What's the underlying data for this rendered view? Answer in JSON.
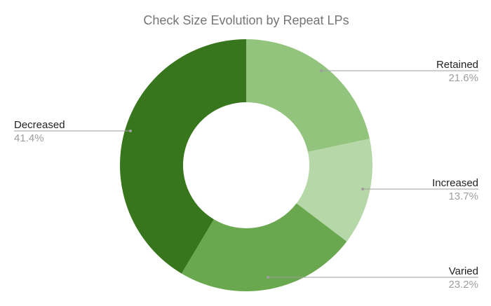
{
  "chart_data": {
    "type": "pie",
    "donut": true,
    "title": "Check Size Evolution by Repeat LPs",
    "slices": [
      {
        "label": "Retained",
        "value": 21.6,
        "value_text": "21.6%",
        "color": "#93c47d"
      },
      {
        "label": "Increased",
        "value": 13.7,
        "value_text": "13.7%",
        "color": "#b6d7a8"
      },
      {
        "label": "Varied",
        "value": 23.2,
        "value_text": "23.2%",
        "color": "#6aa84f"
      },
      {
        "label": "Decreased",
        "value": 41.4,
        "value_text": "41.4%",
        "color": "#38761d"
      }
    ],
    "legend": "none",
    "start_angle": "12 o'clock",
    "direction": "clockwise"
  }
}
